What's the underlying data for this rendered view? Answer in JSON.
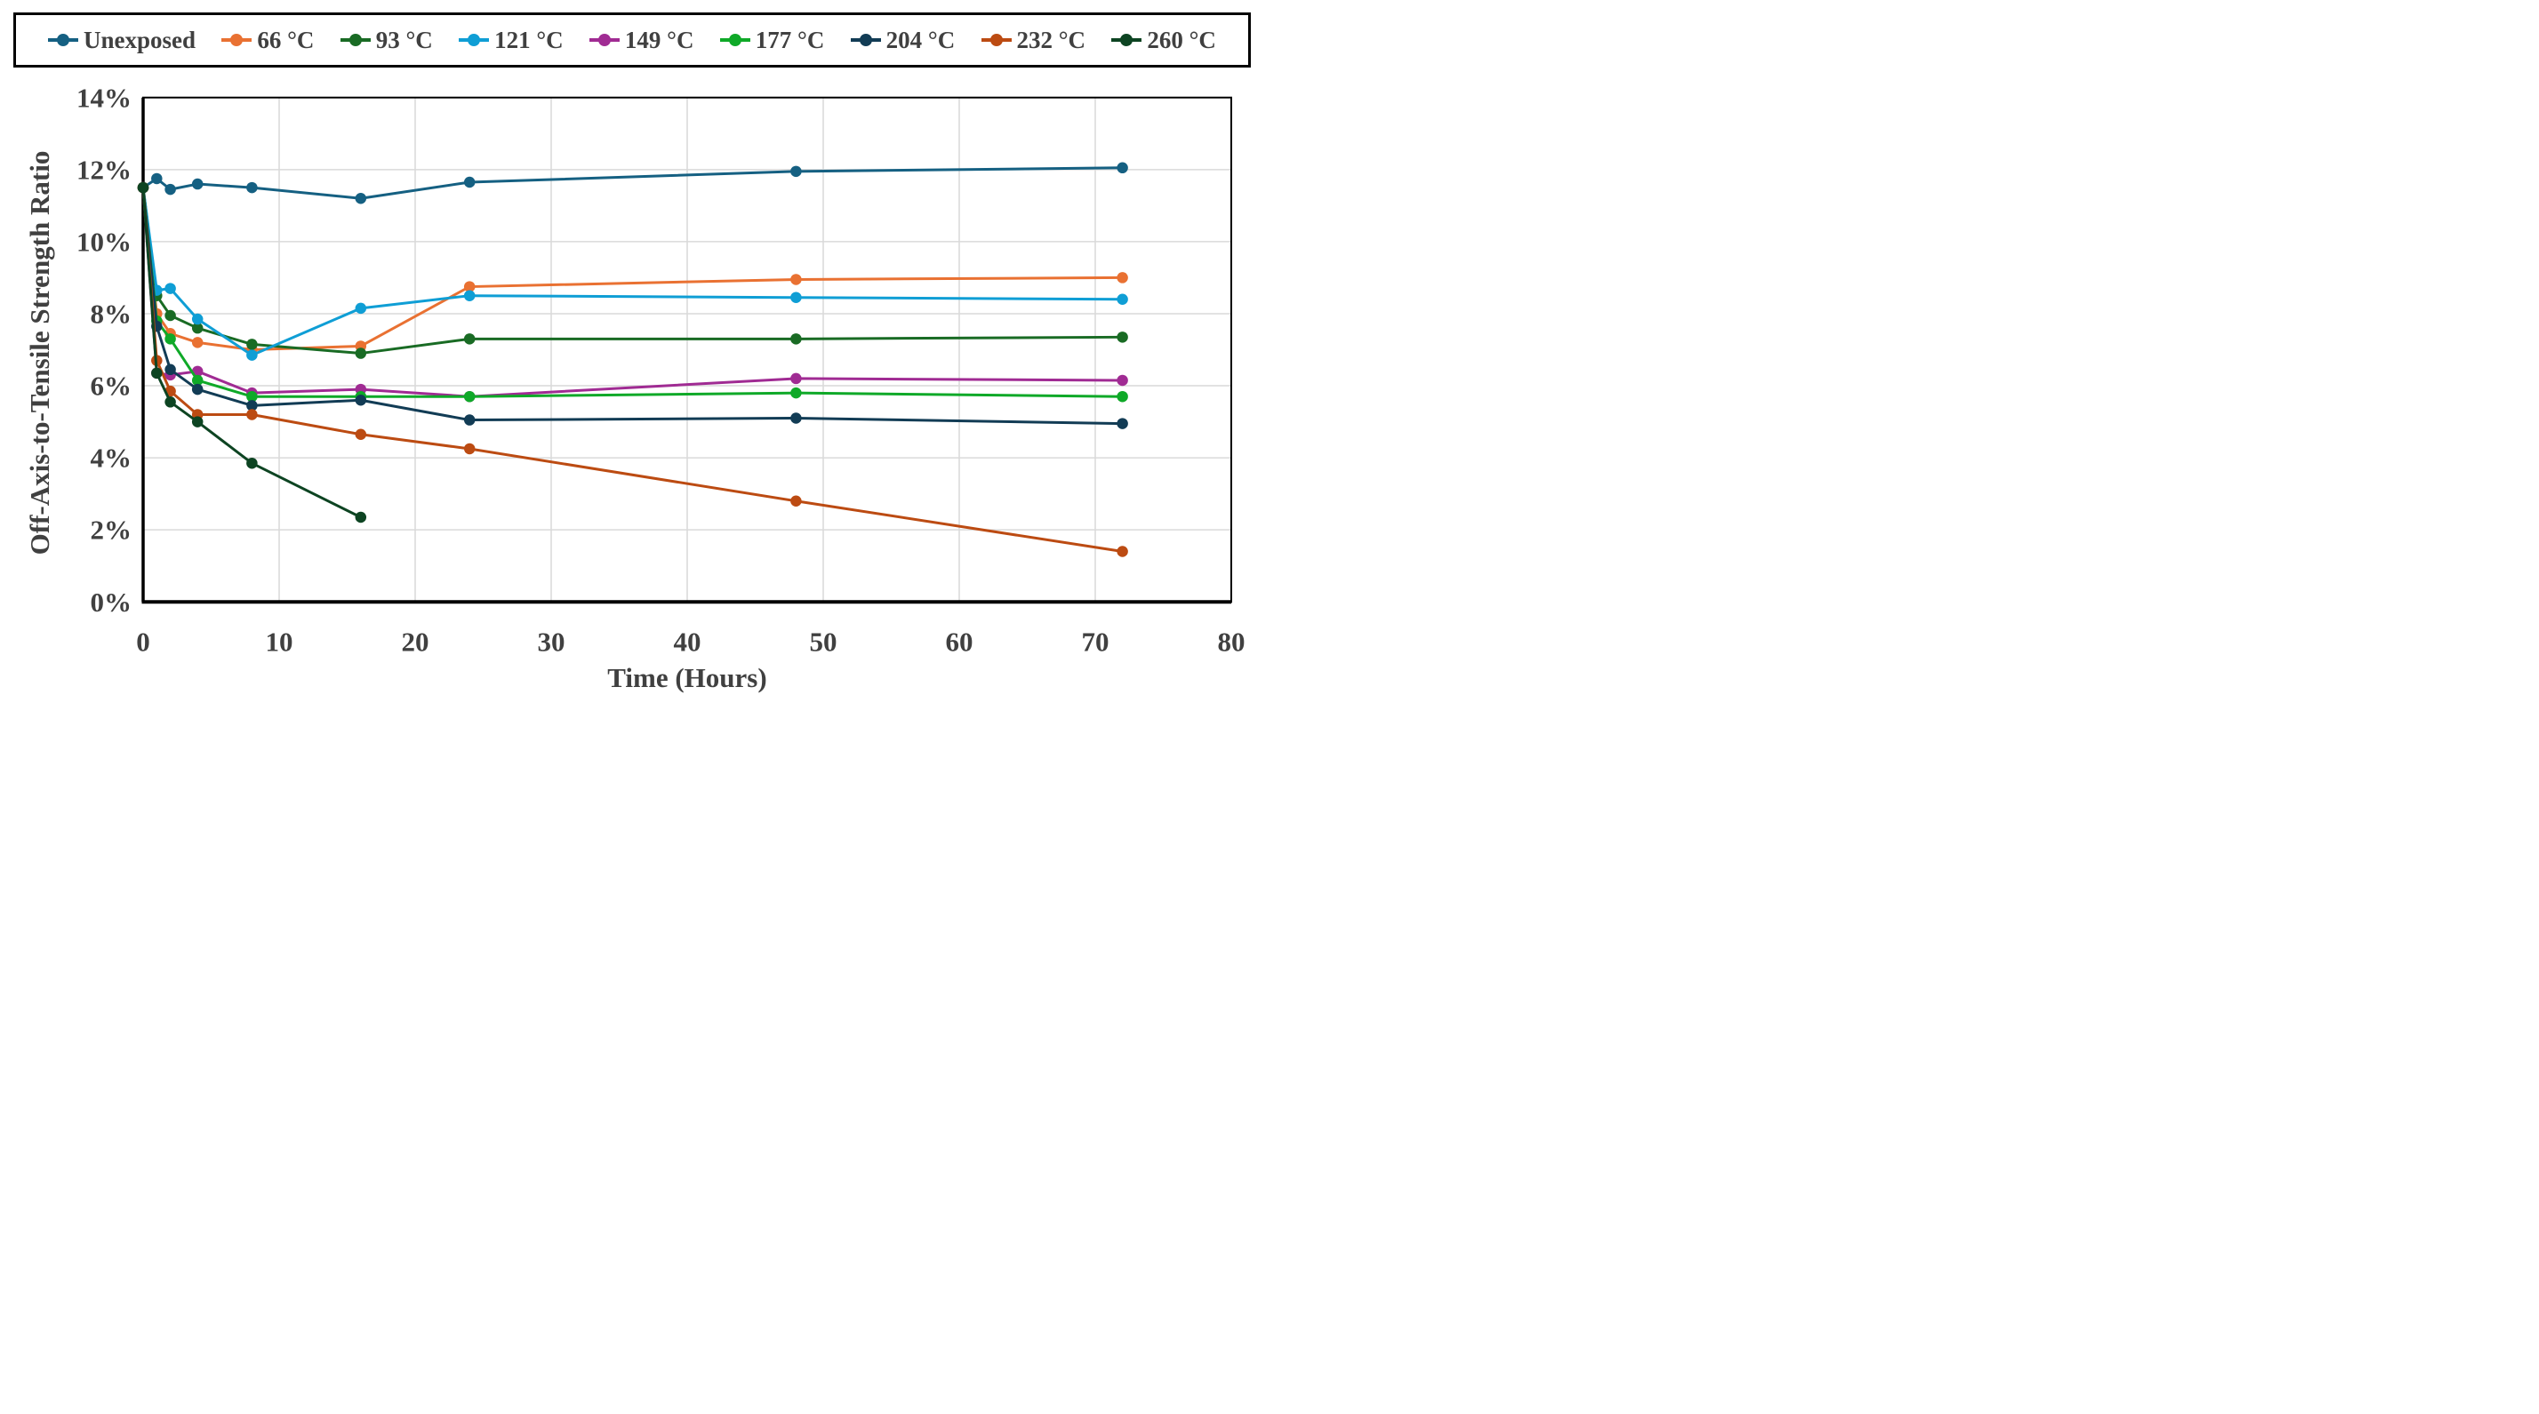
{
  "figure": {
    "background": "#ffffff",
    "text_color": "#404040",
    "gridline_color": "#d9d9d9",
    "plot_border_color": "#000000"
  },
  "legend": {
    "position": "top",
    "items": [
      {
        "key": "unexposed",
        "label": "Unexposed",
        "color": "#156082"
      },
      {
        "key": "66c",
        "label": "66 °C",
        "color": "#E97132"
      },
      {
        "key": "93c",
        "label": "93 °C",
        "color": "#196B24"
      },
      {
        "key": "121c",
        "label": "121 °C",
        "color": "#0F9ED5"
      },
      {
        "key": "149c",
        "label": "149 °C",
        "color": "#A02B93"
      },
      {
        "key": "177c",
        "label": "177 °C",
        "color": "#0FA928"
      },
      {
        "key": "204c",
        "label": "204 °C",
        "color": "#123C55"
      },
      {
        "key": "232c",
        "label": "232 °C",
        "color": "#BC4B12"
      },
      {
        "key": "260c",
        "label": "260 °C",
        "color": "#0D4422"
      }
    ]
  },
  "chart_data": {
    "type": "line",
    "title": "",
    "xlabel": "Time (Hours)",
    "ylabel": "Off-Axis-to-Tensile Strength Ratio",
    "x": [
      0,
      1,
      2,
      4,
      8,
      16,
      24,
      48,
      72
    ],
    "xlim": [
      0,
      80
    ],
    "ylim": [
      0,
      14
    ],
    "grid": true,
    "x_ticks": [
      {
        "v": 0,
        "label": "0"
      },
      {
        "v": 10,
        "label": "10"
      },
      {
        "v": 20,
        "label": "20"
      },
      {
        "v": 30,
        "label": "30"
      },
      {
        "v": 40,
        "label": "40"
      },
      {
        "v": 50,
        "label": "50"
      },
      {
        "v": 60,
        "label": "60"
      },
      {
        "v": 70,
        "label": "70"
      },
      {
        "v": 80,
        "label": "80"
      }
    ],
    "y_ticks": [
      {
        "v": 0,
        "label": "0%"
      },
      {
        "v": 2,
        "label": "2%"
      },
      {
        "v": 4,
        "label": "4%"
      },
      {
        "v": 6,
        "label": "6%"
      },
      {
        "v": 8,
        "label": "8%"
      },
      {
        "v": 10,
        "label": "10%"
      },
      {
        "v": 12,
        "label": "12%"
      },
      {
        "v": 14,
        "label": "14%"
      }
    ],
    "y_unit": "%",
    "series": [
      {
        "key": "unexposed",
        "name": "Unexposed",
        "color": "#156082",
        "values": [
          11.5,
          11.75,
          11.45,
          11.6,
          11.5,
          11.2,
          11.65,
          11.95,
          12.05
        ]
      },
      {
        "key": "66c",
        "name": "66 °C",
        "color": "#E97132",
        "values": [
          11.5,
          8.0,
          7.45,
          7.2,
          7.0,
          7.1,
          8.75,
          8.95,
          9.0
        ]
      },
      {
        "key": "93c",
        "name": "93 °C",
        "color": "#196B24",
        "values": [
          11.5,
          8.5,
          7.95,
          7.6,
          7.15,
          6.9,
          7.3,
          7.3,
          7.35
        ]
      },
      {
        "key": "121c",
        "name": "121 °C",
        "color": "#0F9ED5",
        "values": [
          11.5,
          8.65,
          8.7,
          7.85,
          6.85,
          8.15,
          8.5,
          8.45,
          8.4
        ]
      },
      {
        "key": "149c",
        "name": "149 °C",
        "color": "#A02B93",
        "values": [
          11.5,
          6.35,
          6.3,
          6.4,
          5.8,
          5.9,
          5.7,
          6.2,
          6.15
        ]
      },
      {
        "key": "177c",
        "name": "177 °C",
        "color": "#0FA928",
        "values": [
          11.5,
          7.8,
          7.3,
          6.15,
          5.7,
          5.7,
          5.7,
          5.8,
          5.7
        ]
      },
      {
        "key": "204c",
        "name": "204 °C",
        "color": "#123C55",
        "values": [
          11.5,
          7.65,
          6.45,
          5.9,
          5.45,
          5.6,
          5.05,
          5.1,
          4.95
        ]
      },
      {
        "key": "232c",
        "name": "232 °C",
        "color": "#BC4B12",
        "values": [
          11.5,
          6.7,
          5.85,
          5.2,
          5.2,
          4.65,
          4.25,
          2.8,
          1.4
        ]
      },
      {
        "key": "260c",
        "name": "260 °C",
        "color": "#0D4422",
        "values": [
          11.5,
          6.35,
          5.55,
          5.0,
          3.85,
          2.35
        ]
      }
    ]
  }
}
